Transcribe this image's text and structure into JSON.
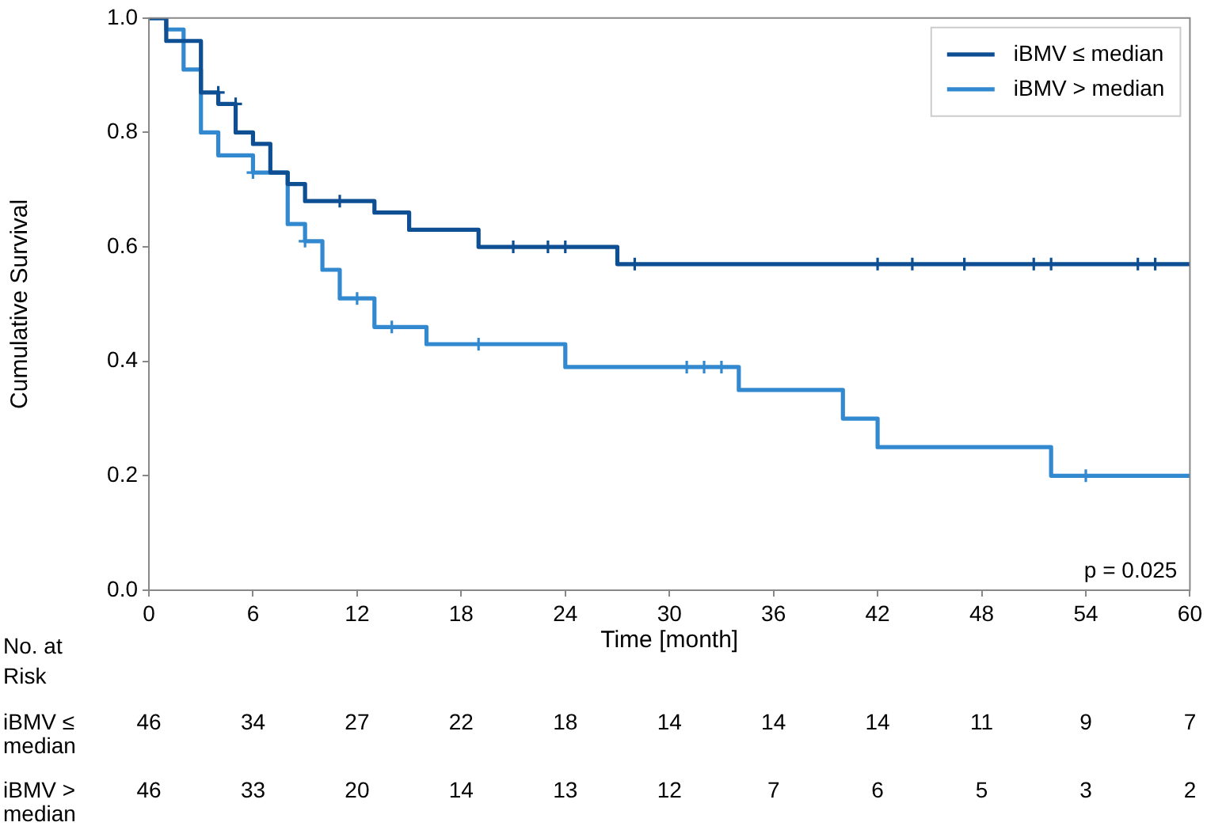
{
  "chart_data": {
    "type": "step",
    "xlabel": "Time [month]",
    "ylabel": "Cumulative Survival",
    "xlim": [
      0,
      60
    ],
    "ylim": [
      0,
      1
    ],
    "xticks": [
      0,
      6,
      12,
      18,
      24,
      30,
      36,
      42,
      48,
      54,
      60
    ],
    "yticks": [
      {
        "value": 0,
        "label": "0.0"
      },
      0.2,
      0.4,
      0.6,
      0.8,
      {
        "value": 1,
        "label": "1.0"
      }
    ],
    "grid": false,
    "legend": "top right",
    "series": [
      {
        "name": "iBMV ≤ median",
        "color": "#0d4f92",
        "x": [
          0,
          1,
          3,
          4,
          5,
          6,
          7,
          8,
          9,
          13,
          15,
          19,
          27,
          60
        ],
        "values": [
          1,
          0.96,
          0.87,
          0.85,
          0.8,
          0.78,
          0.73,
          0.71,
          0.68,
          0.66,
          0.63,
          0.6,
          0.57,
          0.57
        ]
      },
      {
        "name": "iBMV > median",
        "color": "#3389d0",
        "x": [
          0,
          1,
          2,
          3,
          4,
          6,
          8,
          9,
          10,
          11,
          13,
          16,
          24,
          34,
          40,
          42,
          52,
          60
        ],
        "values": [
          1,
          0.98,
          0.91,
          0.8,
          0.76,
          0.73,
          0.64,
          0.61,
          0.56,
          0.51,
          0.46,
          0.43,
          0.39,
          0.35,
          0.3,
          0.25,
          0.2,
          0.2
        ]
      },
      {
        "type": "scatter",
        "marker": "cross",
        "color": "#0d4f92",
        "x": [
          4,
          5,
          11,
          21,
          23,
          24,
          28,
          42,
          44,
          47,
          51,
          52,
          57,
          58
        ],
        "values": [
          0.87,
          0.85,
          0.68,
          0.6,
          0.6,
          0.6,
          0.57,
          0.57,
          0.57,
          0.57,
          0.57,
          0.57,
          0.57,
          0.57
        ]
      },
      {
        "type": "scatter",
        "marker": "cross",
        "color": "#3389d0",
        "x": [
          6,
          9,
          12,
          14,
          19,
          31,
          32,
          33,
          54
        ],
        "values": [
          0.73,
          0.61,
          0.51,
          0.46,
          0.43,
          0.39,
          0.39,
          0.39,
          0.2
        ]
      }
    ],
    "annotations": [
      "p = 0.025",
      "No. at Risk",
      "iBMV ≤ median",
      "46",
      "34",
      "27",
      "22",
      "18",
      "14",
      "14",
      "14",
      "11",
      "9",
      "7",
      "iBMV > median",
      "46",
      "33",
      "20",
      "14",
      "13",
      "12",
      "7",
      "6",
      "5",
      "3",
      "2"
    ]
  }
}
